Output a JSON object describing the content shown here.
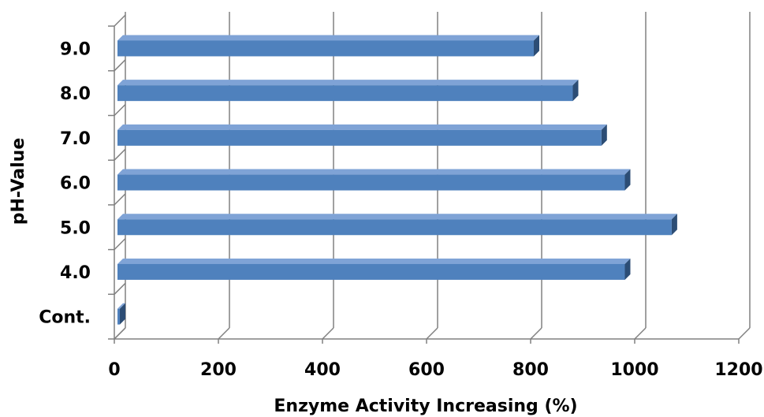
{
  "chart_data": {
    "type": "bar",
    "orientation": "horizontal",
    "style": "3d",
    "categories": [
      "Cont.",
      "4.0",
      "5.0",
      "6.0",
      "7.0",
      "8.0",
      "9.0"
    ],
    "values": [
      0,
      975,
      1065,
      975,
      930,
      875,
      800
    ],
    "xlabel": "Enzyme Activity Increasing (%)",
    "ylabel": "pH-Value",
    "xlim": [
      0,
      1200
    ],
    "xticks": [
      "0",
      "200",
      "400",
      "600",
      "800",
      "1000",
      "1200"
    ],
    "grid": "vertical",
    "colors": {
      "bar": "#4F81BD",
      "bar_top": "#7FA3D6",
      "bar_end": "#2C4D75",
      "grid": "#808080"
    }
  }
}
